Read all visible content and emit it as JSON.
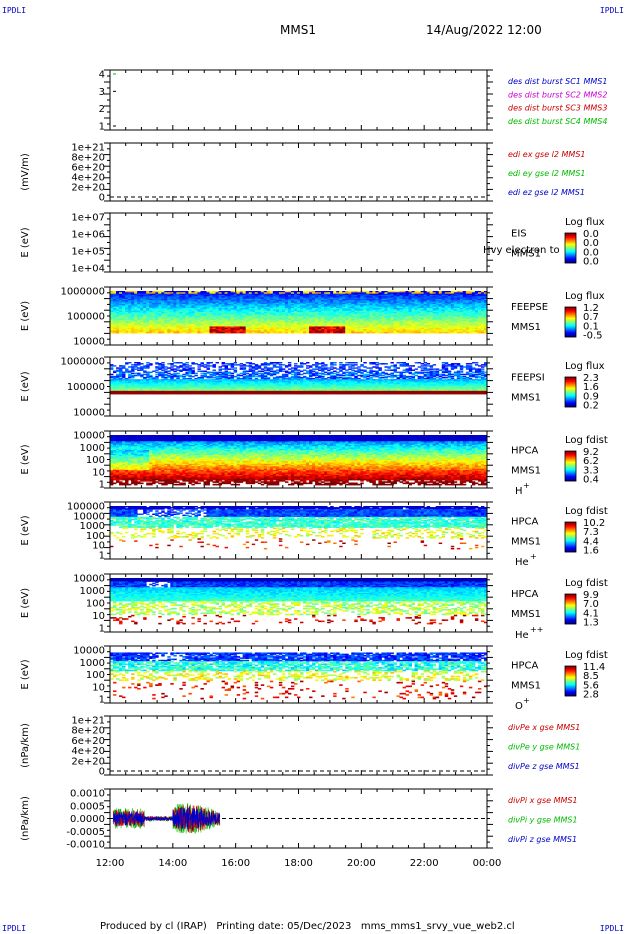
{
  "corner_label": "IPDLI",
  "header": {
    "spacecraft": "MMS1",
    "datetime": "14/Aug/2022 12:00"
  },
  "footer": {
    "text": "Produced by cl (IRAP)   Printing date: 05/Dec/2023   mms_mms1_srvy_vue_web2.cl"
  },
  "colors": {
    "sc1": "#0000cc",
    "sc2": "#cc00cc",
    "sc3": "#cc0000",
    "sc4": "#00bb00",
    "x": "#cc0000",
    "y": "#00bb00",
    "z": "#0000cc",
    "dashed": "#000000"
  },
  "chart_data": [
    {
      "id": "des_dist",
      "type": "line",
      "ylim": [
        0.5,
        4.5
      ],
      "yticks": [
        "4",
        "3",
        "2",
        "1"
      ],
      "ylabel": "",
      "legend": [
        {
          "text": "des dist burst SC1 MMS1",
          "color": "#0000cc"
        },
        {
          "text": "des dist burst SC2 MMS2",
          "color": "#cc00cc"
        },
        {
          "text": "des dist burst SC3 MMS3",
          "color": "#cc0000"
        },
        {
          "text": "des dist burst SC4 MMS4",
          "color": "#00bb00"
        }
      ],
      "series": [
        {
          "name": "SC1",
          "values": [
            [
              12.2,
              1
            ]
          ],
          "color": "#000000"
        },
        {
          "name": "SC2",
          "values": [
            [
              12.2,
              3
            ]
          ],
          "color": "#000000"
        },
        {
          "name": "SC4",
          "values": [
            [
              12.2,
              4
            ]
          ],
          "color": "#00bb00"
        }
      ]
    },
    {
      "id": "edi",
      "type": "line",
      "ylabel": "(mV/m)",
      "yticks": [
        "1e+21",
        "8e+20",
        "6e+20",
        "4e+20",
        "2e+20",
        "0"
      ],
      "legend": [
        {
          "text": "edi ex gse l2 MMS1",
          "color": "#cc0000"
        },
        {
          "text": "edi ey gse l2 MMS1",
          "color": "#00bb00"
        },
        {
          "text": "edi ez gse l2 MMS1",
          "color": "#0000cc"
        }
      ]
    },
    {
      "id": "eis",
      "type": "heatmap",
      "ylabel": "E (eV)",
      "yticks": [
        "1e+07",
        "1e+06",
        "1e+05",
        "1e+04"
      ],
      "instrument": [
        "EIS",
        "MMS1"
      ],
      "overlay_text": "Hvy electron to",
      "cbar_title": "Log flux",
      "cbar_ticks": [
        "0.0",
        "0.0",
        "0.0",
        "0.0"
      ]
    },
    {
      "id": "feepse",
      "type": "heatmap",
      "ylabel": "E (eV)",
      "yticks": [
        "1000000",
        "100000",
        "10000"
      ],
      "instrument": [
        "FEEPSE",
        "MMS1"
      ],
      "cbar_title": "Log flux",
      "cbar_ticks": [
        "1.2",
        "0.7",
        "0.1",
        "-0.5"
      ]
    },
    {
      "id": "feepsi",
      "type": "heatmap",
      "ylabel": "E (eV)",
      "yticks": [
        "1000000",
        "100000",
        "10000"
      ],
      "instrument": [
        "FEEPSI",
        "MMS1"
      ],
      "cbar_title": "Log flux",
      "cbar_ticks": [
        "2.3",
        "1.6",
        "0.9",
        "0.2"
      ]
    },
    {
      "id": "hpca_h",
      "type": "heatmap",
      "ylabel": "E (eV)",
      "yticks": [
        "10000",
        "1000",
        "100",
        "10",
        "1"
      ],
      "instrument": [
        "HPCA",
        "MMS1"
      ],
      "species": "H",
      "species_sup": "+",
      "cbar_title": "Log fdist",
      "cbar_ticks": [
        "9.2",
        "6.2",
        "3.3",
        "0.4"
      ]
    },
    {
      "id": "hpca_he1",
      "type": "heatmap",
      "ylabel": "E (eV)",
      "yticks": [
        "100000",
        "10000",
        "1000",
        "100",
        "10",
        "1"
      ],
      "instrument": [
        "HPCA",
        "MMS1"
      ],
      "species": "He",
      "species_sup": "+",
      "cbar_title": "Log fdist",
      "cbar_ticks": [
        "10.2",
        "7.3",
        "4.4",
        "1.6"
      ]
    },
    {
      "id": "hpca_he2",
      "type": "heatmap",
      "ylabel": "E (eV)",
      "yticks": [
        "10000",
        "1000",
        "100",
        "10",
        "1"
      ],
      "instrument": [
        "HPCA",
        "MMS1"
      ],
      "species": "He",
      "species_sup": "++",
      "cbar_title": "Log fdist",
      "cbar_ticks": [
        "9.9",
        "7.0",
        "4.1",
        "1.3"
      ]
    },
    {
      "id": "hpca_o",
      "type": "heatmap",
      "ylabel": "E (eV)",
      "yticks": [
        "10000",
        "1000",
        "100",
        "10",
        "1"
      ],
      "instrument": [
        "HPCA",
        "MMS1"
      ],
      "species": "O",
      "species_sup": "+",
      "cbar_title": "Log fdist",
      "cbar_ticks": [
        "11.4",
        "8.5",
        "5.6",
        "2.8"
      ]
    },
    {
      "id": "divpe",
      "type": "line",
      "ylabel": "(nPa/km)",
      "yticks": [
        "1e+21",
        "8e+20",
        "6e+20",
        "4e+20",
        "2e+20",
        "0"
      ],
      "legend": [
        {
          "text": "divPe x gse MMS1",
          "color": "#cc0000"
        },
        {
          "text": "divPe y gse MMS1",
          "color": "#00bb00"
        },
        {
          "text": "divPe z gse MMS1",
          "color": "#0000cc"
        }
      ]
    },
    {
      "id": "divpi",
      "type": "line",
      "ylabel": "(nPa/km)",
      "yticks": [
        "0.0010",
        "0.0005",
        "0.0000",
        "-0.0005",
        "-0.0010"
      ],
      "ylim": [
        -0.0013,
        0.0013
      ],
      "xlim": [
        12,
        24
      ],
      "data_range": [
        12.1,
        15.5
      ],
      "legend": [
        {
          "text": "divPi x gse MMS1",
          "color": "#cc0000"
        },
        {
          "text": "divPi y gse MMS1",
          "color": "#00bb00"
        },
        {
          "text": "divPi z gse MMS1",
          "color": "#0000cc"
        }
      ]
    }
  ],
  "x_axis": {
    "ticks": [
      "12:00",
      "14:00",
      "16:00",
      "18:00",
      "20:00",
      "22:00",
      "00:00"
    ]
  }
}
